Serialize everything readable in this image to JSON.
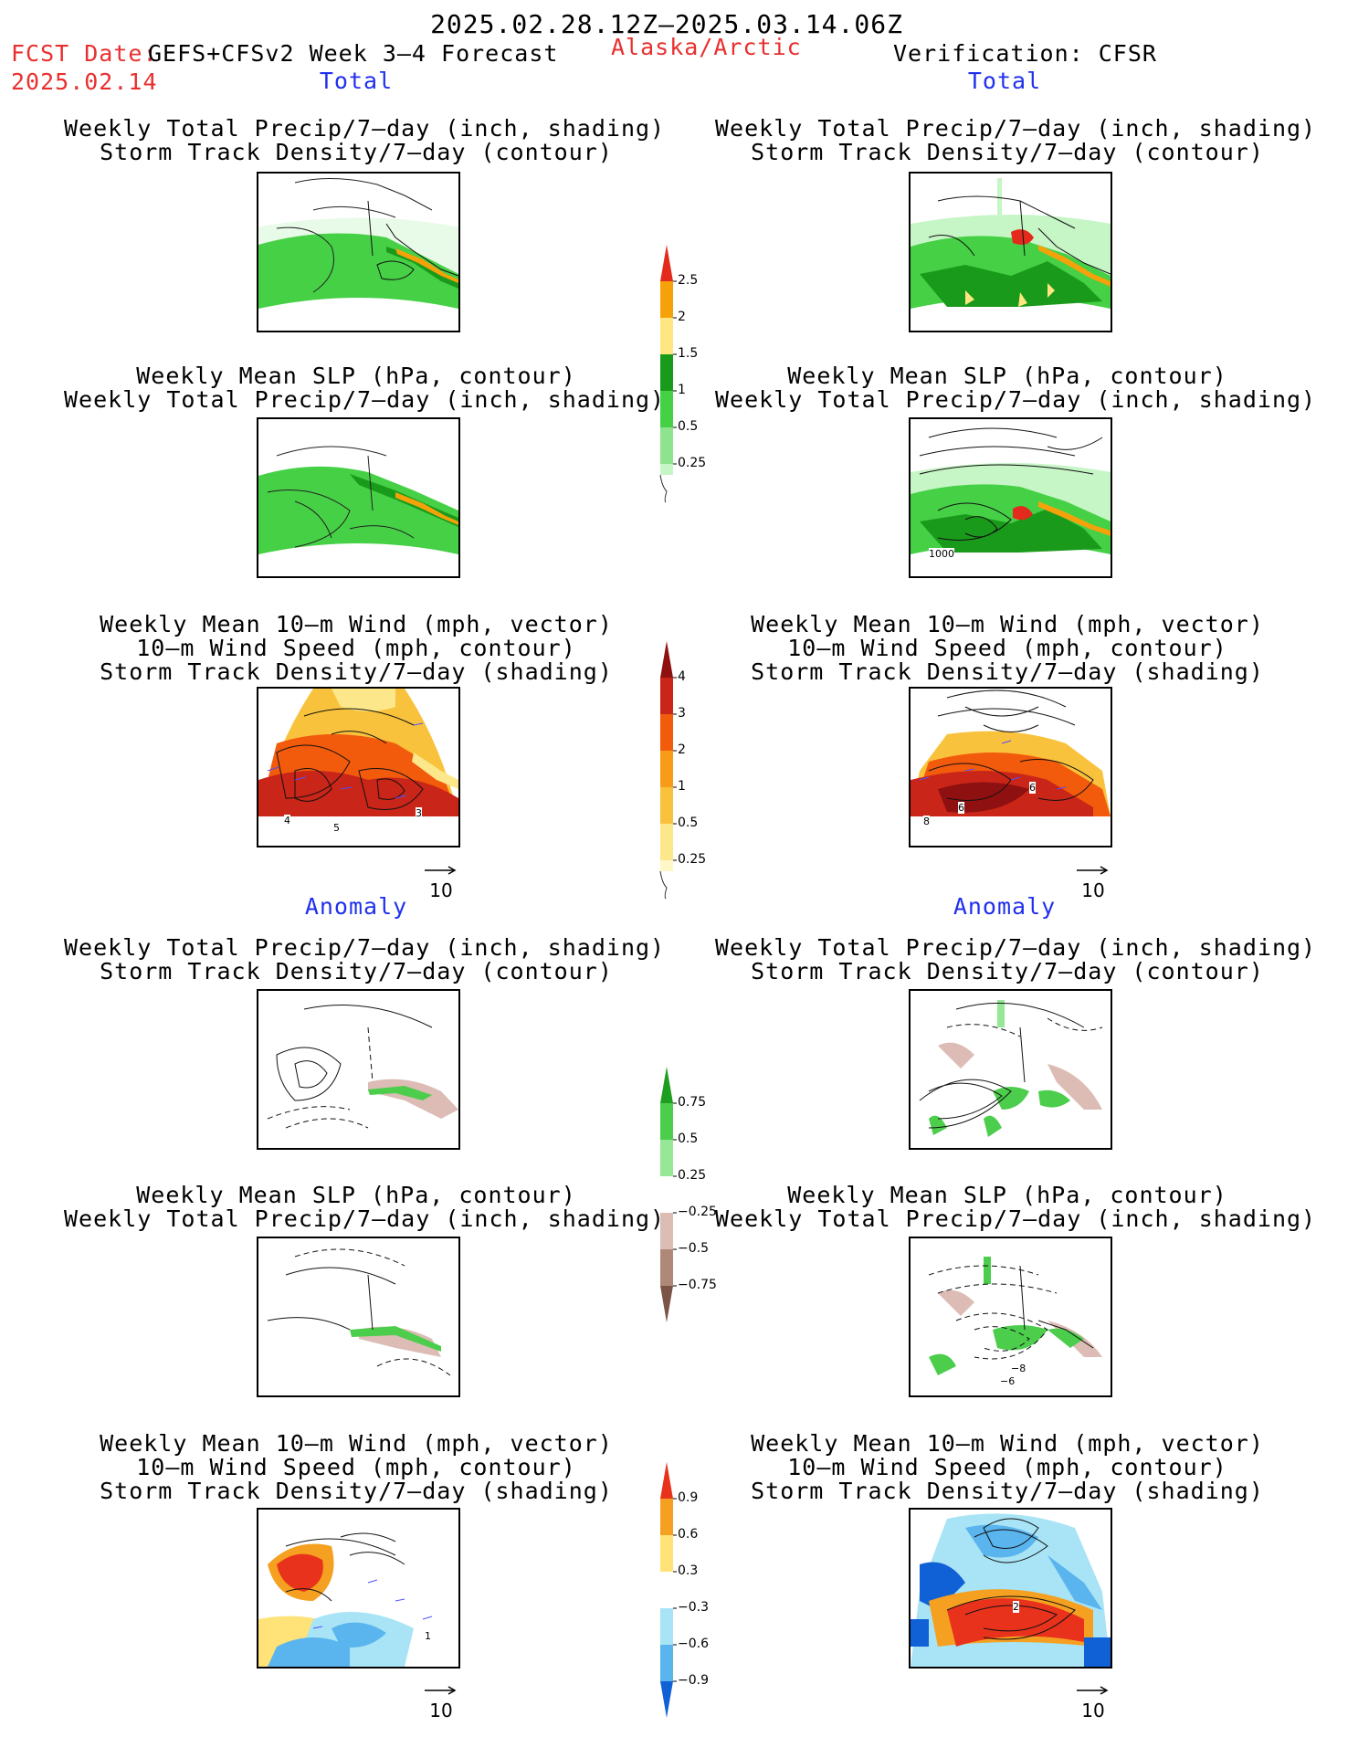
{
  "header": {
    "period": "2025.02.28.12Z–2025.03.14.06Z",
    "fcst_prefix": "FCST Date:",
    "fcst_model": "GEFS+CFSv2 Week 3–4 Forecast",
    "region": "Alaska/Arctic",
    "verification": "Verification: CFSR",
    "fcst_date": "2025.02.14"
  },
  "sections": {
    "total": "Total",
    "anomaly": "Anomaly"
  },
  "titles": {
    "precip_storm": [
      "Weekly Total Precip/7–day (inch, shading)",
      "Storm Track Density/7–day (contour)"
    ],
    "slp_precip": [
      "Weekly Mean SLP (hPa, contour)",
      "Weekly Total Precip/7–day (inch, shading)"
    ],
    "wind_storm": [
      "Weekly Mean 10–m Wind (mph, vector)",
      "10–m Wind Speed (mph, contour)",
      "Storm Track Density/7–day (shading)"
    ]
  },
  "reference_vector": "10",
  "colorbars": {
    "precip_total": {
      "ticks": [
        "2.5",
        "2",
        "1.5",
        "1",
        "0.5",
        "0.25"
      ],
      "colors": [
        "#e32a1c",
        "#f5a20a",
        "#ffe680",
        "#1a9a1a",
        "#46d046",
        "#8ee38e",
        "#c6f5c6"
      ]
    },
    "storm_total": {
      "ticks": [
        "4",
        "3",
        "2",
        "1",
        "0.5",
        "0.25"
      ],
      "colors": [
        "#8e1010",
        "#c92518",
        "#f25a0c",
        "#f79b18",
        "#f9c23c",
        "#fce88a",
        "#fff7c6"
      ]
    },
    "precip_anom": {
      "ticks": [
        "0.75",
        "0.5",
        "0.25",
        "−0.25",
        "−0.5",
        "−0.75"
      ],
      "colors": [
        "#1e9e1e",
        "#4ccd4c",
        "#96e896",
        "#ffffff",
        "#dcbcb4",
        "#b08878",
        "#7a5446"
      ]
    },
    "storm_anom": {
      "ticks": [
        "0.9",
        "0.6",
        "0.3",
        "−0.3",
        "−0.6",
        "−0.9"
      ],
      "colors": [
        "#e8321c",
        "#f5a020",
        "#ffe378",
        "#ffffff",
        "#a8e4f6",
        "#5ab4ee",
        "#1060d6"
      ]
    }
  },
  "map_labels": {
    "slp_cfsr": "1000",
    "wind_gefs": [
      "4",
      "5",
      "3"
    ],
    "wind_cfsr": [
      "8",
      "6",
      "6"
    ],
    "slp_anom_cfsr": [
      "−8",
      "−6"
    ],
    "wind_anom_gefs": [
      "1"
    ],
    "wind_anom_cfsr": [
      "2"
    ]
  }
}
